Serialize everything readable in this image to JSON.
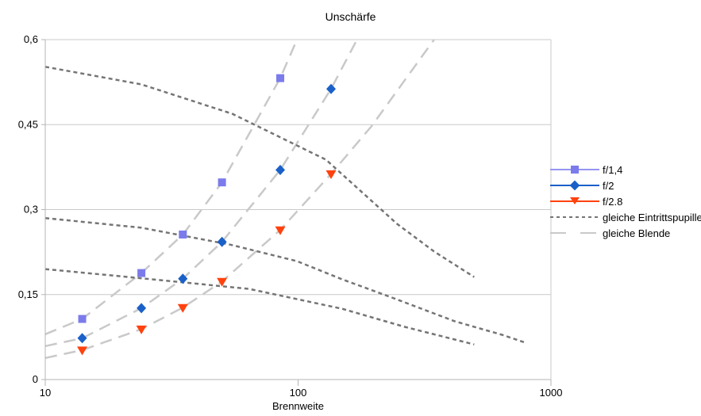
{
  "chart_data": {
    "type": "scatter",
    "title": "Unschärfe",
    "xlabel": "Brennweite",
    "ylabel": "",
    "x_scale": "log",
    "xlim": [
      10,
      1000
    ],
    "ylim": [
      0,
      0.6
    ],
    "grid": true,
    "legend_position": "right",
    "grid_color": "#c9c9c9",
    "axis_color": "#b5b5b5",
    "x_ticks": [
      {
        "label": "10",
        "value": 10
      },
      {
        "label": "100",
        "value": 100
      },
      {
        "label": "1000",
        "value": 1000
      }
    ],
    "y_ticks": [
      {
        "label": "0",
        "value": 0
      },
      {
        "label": "0,15",
        "value": 0.15
      },
      {
        "label": "0,3",
        "value": 0.3
      },
      {
        "label": "0,45",
        "value": 0.45
      },
      {
        "label": "0,6",
        "value": 0.6
      }
    ],
    "series": [
      {
        "name": "f/1,4",
        "marker": "square",
        "color": "#7b7bec",
        "line_color": "#9595f0",
        "x": [
          14,
          24,
          35,
          50,
          85
        ],
        "y": [
          0.107,
          0.188,
          0.256,
          0.348,
          0.532
        ]
      },
      {
        "name": "f/2",
        "marker": "diamond",
        "color": "#1a60c8",
        "line_color": "#1a60c8",
        "x": [
          14,
          24,
          35,
          50,
          85,
          135
        ],
        "y": [
          0.073,
          0.126,
          0.178,
          0.243,
          0.37,
          0.513
        ]
      },
      {
        "name": "f/2.8",
        "marker": "triangle-down",
        "color": "#ff420e",
        "line_color": "#ff420e",
        "x": [
          14,
          24,
          35,
          50,
          85,
          135
        ],
        "y": [
          0.052,
          0.089,
          0.127,
          0.173,
          0.264,
          0.363
        ]
      },
      {
        "name": "gleiche Eintrittspupille",
        "style": "dotted",
        "color": "#757575",
        "lines": [
          [
            [
              10,
              0.552
            ],
            [
              24,
              0.521
            ],
            [
              55,
              0.469
            ],
            [
              129,
              0.388
            ],
            [
              246,
              0.275
            ],
            [
              345,
              0.226
            ],
            [
              497,
              0.181
            ]
          ],
          [
            [
              10,
              0.285
            ],
            [
              24,
              0.268
            ],
            [
              54,
              0.238
            ],
            [
              99,
              0.209
            ],
            [
              149,
              0.177
            ],
            [
              234,
              0.145
            ],
            [
              416,
              0.103
            ],
            [
              640,
              0.079
            ],
            [
              794,
              0.065
            ]
          ],
          [
            [
              10,
              0.195
            ],
            [
              25,
              0.178
            ],
            [
              64,
              0.16
            ],
            [
              149,
              0.125
            ],
            [
              264,
              0.093
            ],
            [
              497,
              0.062
            ]
          ]
        ]
      },
      {
        "name": "gleiche Blende",
        "style": "dashed",
        "color": "#c9c9c9",
        "lines": [
          [
            [
              10,
              0.08
            ],
            [
              14,
              0.107
            ],
            [
              24,
              0.188
            ],
            [
              35,
              0.256
            ],
            [
              50,
              0.348
            ],
            [
              85,
              0.532
            ],
            [
              99,
              0.6
            ]
          ],
          [
            [
              10,
              0.059
            ],
            [
              14,
              0.073
            ],
            [
              24,
              0.126
            ],
            [
              35,
              0.178
            ],
            [
              50,
              0.243
            ],
            [
              85,
              0.37
            ],
            [
              135,
              0.513
            ],
            [
              171,
              0.6
            ]
          ],
          [
            [
              10,
              0.038
            ],
            [
              14,
              0.052
            ],
            [
              24,
              0.089
            ],
            [
              35,
              0.127
            ],
            [
              50,
              0.173
            ],
            [
              85,
              0.264
            ],
            [
              135,
              0.363
            ],
            [
              195,
              0.447
            ],
            [
              345,
              0.6
            ]
          ]
        ]
      }
    ]
  }
}
